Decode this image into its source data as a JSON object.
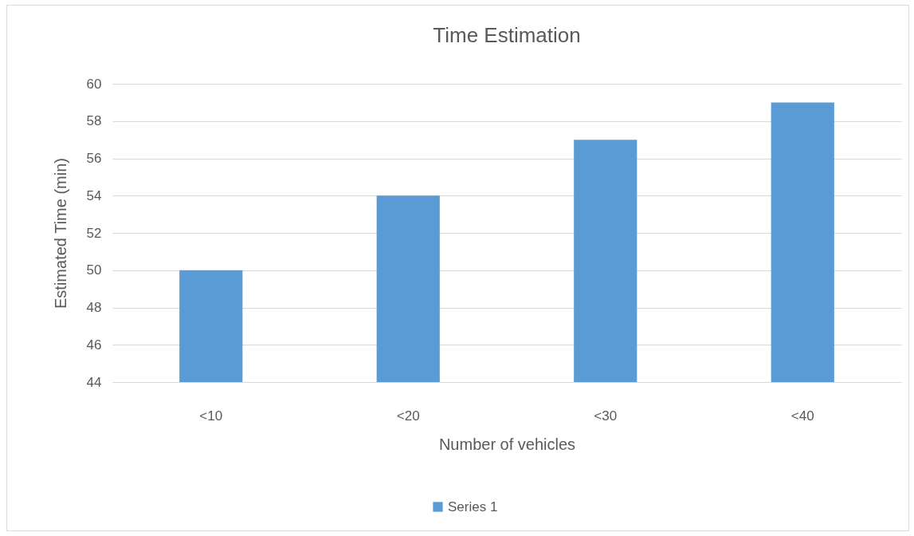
{
  "chart_data": {
    "type": "bar",
    "title": "Time Estimation",
    "xlabel": "Number of vehicles",
    "ylabel": "Estimated Time (min)",
    "categories": [
      "<10",
      "<20",
      "<30",
      "<40"
    ],
    "series": [
      {
        "name": "Series 1",
        "color": "#5b9bd5",
        "values": [
          50,
          54,
          57,
          59
        ]
      }
    ],
    "ylim": [
      44,
      60
    ],
    "yticks": [
      44,
      46,
      48,
      50,
      52,
      54,
      56,
      58,
      60
    ],
    "grid": "y",
    "legend": "bottom"
  }
}
